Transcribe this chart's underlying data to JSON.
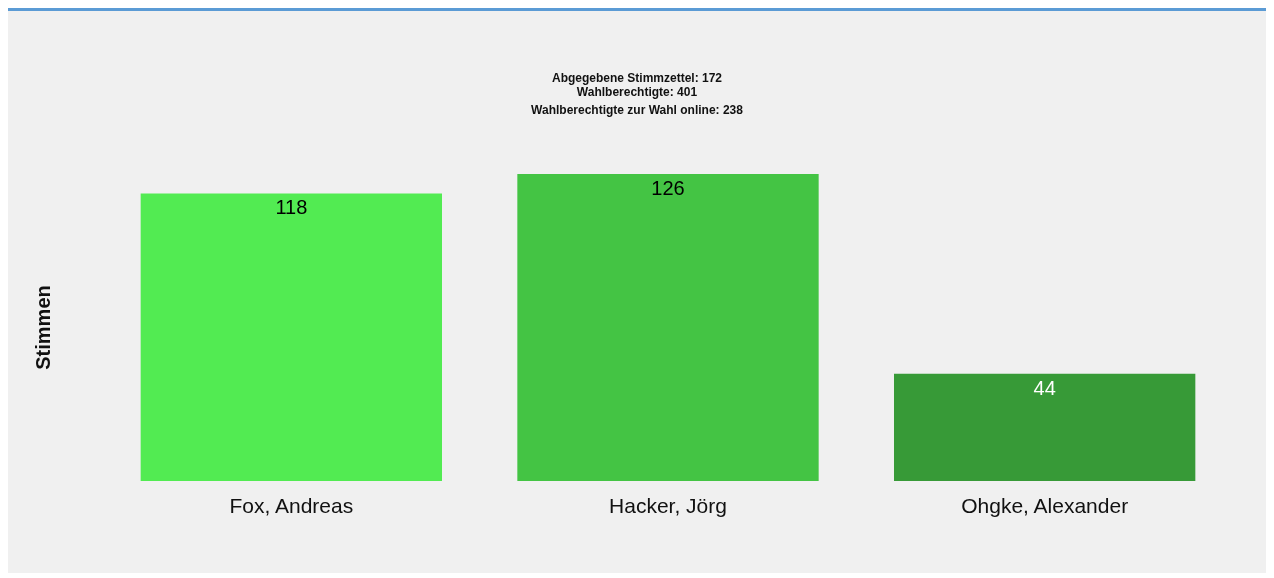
{
  "chart_data": {
    "type": "bar",
    "title": "Abgegebene Stimmzettel: 172",
    "annotations": [
      "Wahlberechtigte: 401",
      "Wahlberechtigte zur Wahl online: 238"
    ],
    "ylabel": "Stimmen",
    "categories": [
      "Fox, Andreas",
      "Hacker, Jörg",
      "Ohgke, Alexander"
    ],
    "values": [
      118,
      126,
      44
    ],
    "colors": [
      "#52eb52",
      "#44c444",
      "#379a37"
    ],
    "data_labels": true,
    "grid": false
  }
}
